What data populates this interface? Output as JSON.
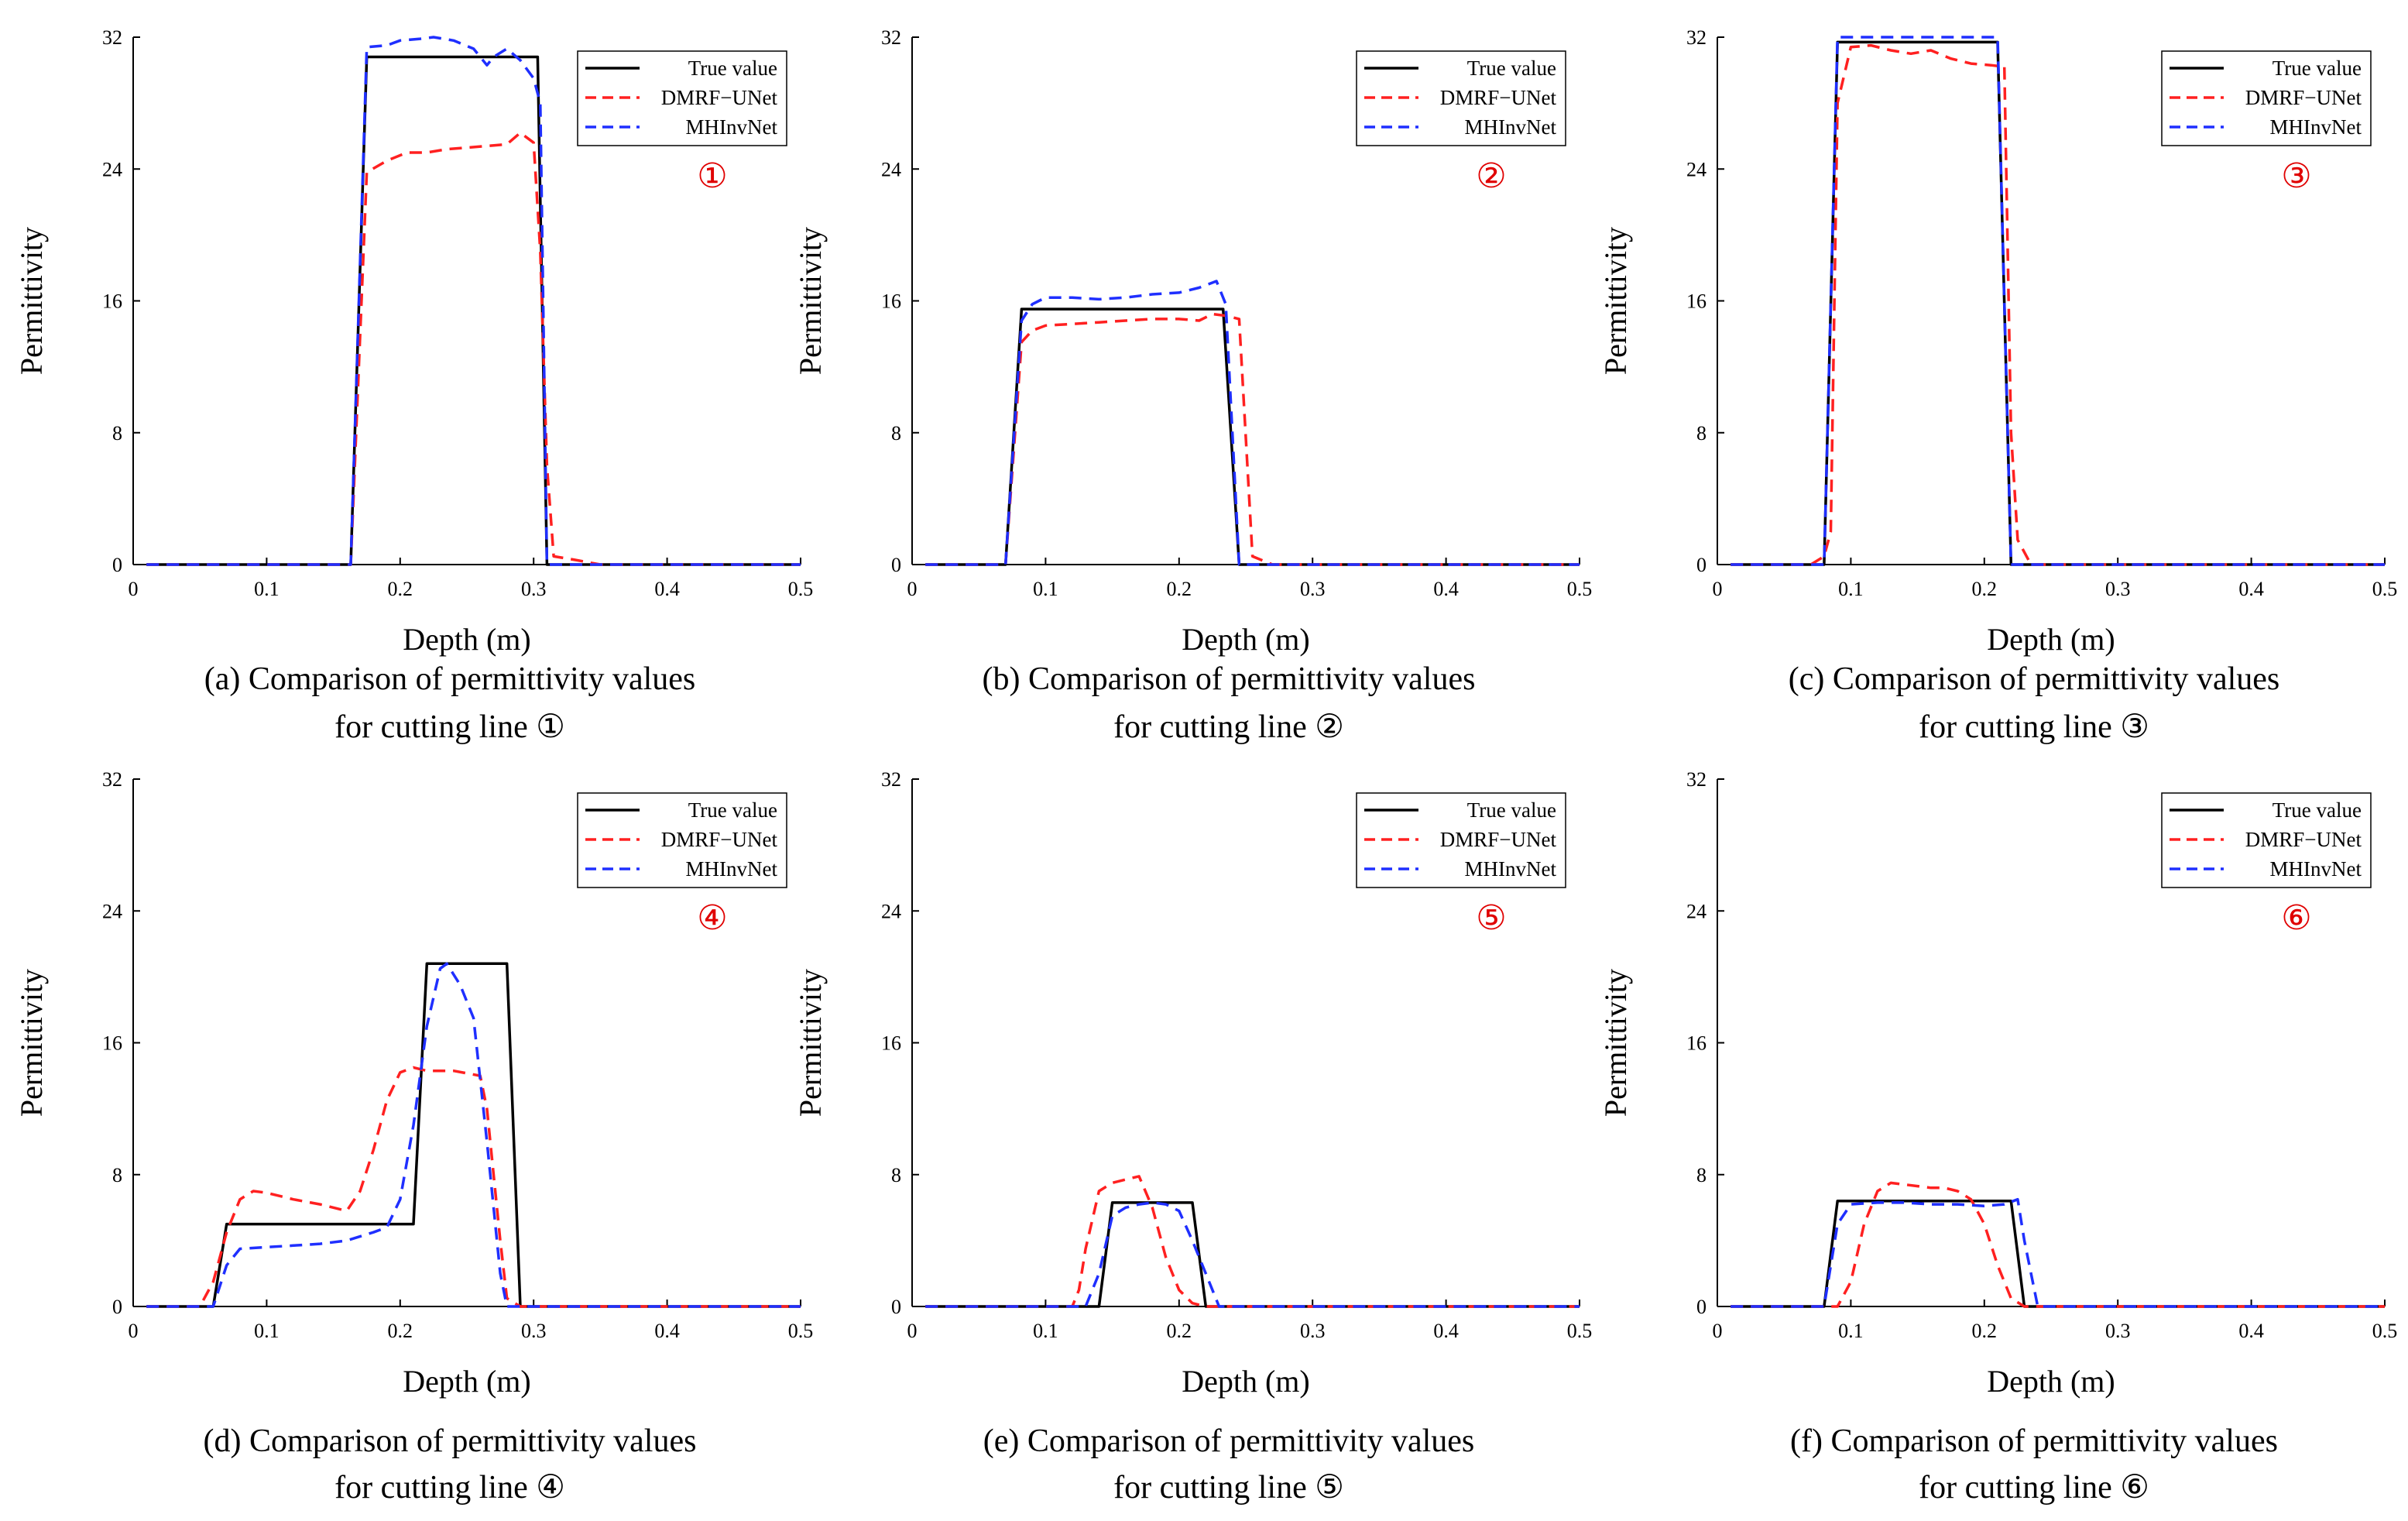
{
  "figure": {
    "panels": [
      {
        "caption_line1": "(a) Comparison of permittivity values",
        "caption_line2": "for cutting line  ①"
      },
      {
        "caption_line1": "(b) Comparison of permittivity values",
        "caption_line2": "for cutting line  ②"
      },
      {
        "caption_line1": "(c) Comparison of permittivity values",
        "caption_line2": "for cutting line  ③"
      },
      {
        "caption_line1": "(d) Comparison of permittivity values",
        "caption_line2": "for cutting line  ④"
      },
      {
        "caption_line1": "(e) Comparison of permittivity values",
        "caption_line2": "for cutting line  ⑤"
      },
      {
        "caption_line1": "(f) Comparison of permittivity values",
        "caption_line2": "for cutting line  ⑥"
      }
    ]
  },
  "colors": {
    "true_value": "#000000",
    "dmrf_unet": "#ff2020",
    "mhinvnet": "#1f2fff",
    "marker": "#e00000"
  },
  "chart_data": [
    {
      "type": "line",
      "title": "",
      "marker": "①",
      "xlabel": "Depth (m)",
      "ylabel": "Permittivity",
      "xlim": [
        0,
        0.5
      ],
      "ylim": [
        0,
        32
      ],
      "xticks": [
        0,
        0.1,
        0.2,
        0.3,
        0.4,
        0.5
      ],
      "xtick_labels": [
        "0",
        "0.1",
        "0.2",
        "0.3",
        "0.4",
        "0.5"
      ],
      "yticks": [
        0,
        8,
        16,
        24,
        32
      ],
      "ytick_labels": [
        "0",
        "8",
        "16",
        "24",
        "32"
      ],
      "legend": {
        "position": "top-right",
        "entries": [
          "True value",
          "DMRF−UNet",
          "MHInvNet"
        ]
      },
      "series": [
        {
          "name": "True value",
          "style": "solid",
          "x": [
            0.01,
            0.163,
            0.175,
            0.303,
            0.31,
            0.5
          ],
          "y": [
            0,
            0,
            30.8,
            30.8,
            0,
            0
          ]
        },
        {
          "name": "DMRF−UNet",
          "style": "dashed",
          "x": [
            0.01,
            0.163,
            0.175,
            0.19,
            0.205,
            0.22,
            0.235,
            0.25,
            0.265,
            0.28,
            0.29,
            0.3,
            0.305,
            0.31,
            0.315,
            0.33,
            0.35,
            0.5
          ],
          "y": [
            0,
            0,
            23.8,
            24.5,
            25.0,
            25.0,
            25.2,
            25.3,
            25.4,
            25.5,
            26.2,
            25.6,
            19.0,
            6.0,
            0.5,
            0.3,
            0,
            0
          ]
        },
        {
          "name": "MHInvNet",
          "style": "dashed",
          "x": [
            0.01,
            0.163,
            0.175,
            0.19,
            0.2,
            0.215,
            0.225,
            0.24,
            0.255,
            0.265,
            0.27,
            0.28,
            0.29,
            0.3,
            0.305,
            0.31,
            0.5
          ],
          "y": [
            0,
            0,
            31.4,
            31.5,
            31.8,
            31.9,
            32.0,
            31.8,
            31.3,
            30.3,
            30.8,
            31.3,
            30.6,
            29.5,
            28.0,
            0,
            0
          ]
        }
      ]
    },
    {
      "type": "line",
      "title": "",
      "marker": "②",
      "xlabel": "Depth (m)",
      "ylabel": "Permittivity",
      "xlim": [
        0,
        0.5
      ],
      "ylim": [
        0,
        32
      ],
      "xticks": [
        0,
        0.1,
        0.2,
        0.3,
        0.4,
        0.5
      ],
      "xtick_labels": [
        "0",
        "0.1",
        "0.2",
        "0.3",
        "0.4",
        "0.5"
      ],
      "yticks": [
        0,
        8,
        16,
        24,
        32
      ],
      "ytick_labels": [
        "0",
        "8",
        "16",
        "24",
        "32"
      ],
      "legend": {
        "position": "top-right",
        "entries": [
          "True value",
          "DMRF−UNet",
          "MHInvNet"
        ]
      },
      "series": [
        {
          "name": "True value",
          "style": "solid",
          "x": [
            0.01,
            0.07,
            0.082,
            0.233,
            0.245,
            0.5
          ],
          "y": [
            0,
            0,
            15.5,
            15.5,
            0,
            0
          ]
        },
        {
          "name": "DMRF−UNet",
          "style": "dashed",
          "x": [
            0.01,
            0.07,
            0.082,
            0.09,
            0.1,
            0.12,
            0.14,
            0.16,
            0.18,
            0.2,
            0.215,
            0.225,
            0.235,
            0.245,
            0.255,
            0.27,
            0.5
          ],
          "y": [
            0,
            0,
            13.5,
            14.2,
            14.5,
            14.6,
            14.7,
            14.8,
            14.9,
            14.9,
            14.8,
            15.2,
            15.1,
            14.9,
            0.5,
            0,
            0
          ]
        },
        {
          "name": "MHInvNet",
          "style": "dashed",
          "x": [
            0.01,
            0.07,
            0.082,
            0.09,
            0.1,
            0.12,
            0.14,
            0.16,
            0.18,
            0.2,
            0.215,
            0.228,
            0.235,
            0.245,
            0.5
          ],
          "y": [
            0,
            0,
            14.8,
            15.8,
            16.2,
            16.2,
            16.1,
            16.2,
            16.4,
            16.5,
            16.8,
            17.2,
            15.8,
            0,
            0
          ]
        }
      ]
    },
    {
      "type": "line",
      "title": "",
      "marker": "③",
      "xlabel": "Depth (m)",
      "ylabel": "Permittivity",
      "xlim": [
        0,
        0.5
      ],
      "ylim": [
        0,
        32
      ],
      "xticks": [
        0,
        0.1,
        0.2,
        0.3,
        0.4,
        0.5
      ],
      "xtick_labels": [
        "0",
        "0.1",
        "0.2",
        "0.3",
        "0.4",
        "0.5"
      ],
      "yticks": [
        0,
        8,
        16,
        24,
        32
      ],
      "ytick_labels": [
        "0",
        "8",
        "16",
        "24",
        "32"
      ],
      "legend": {
        "position": "top-right",
        "entries": [
          "True value",
          "DMRF−UNet",
          "MHInvNet"
        ]
      },
      "series": [
        {
          "name": "True value",
          "style": "solid",
          "x": [
            0.01,
            0.08,
            0.09,
            0.21,
            0.22,
            0.5
          ],
          "y": [
            0,
            0,
            31.7,
            31.7,
            0,
            0
          ]
        },
        {
          "name": "DMRF−UNet",
          "style": "dashed",
          "x": [
            0.01,
            0.07,
            0.08,
            0.085,
            0.09,
            0.1,
            0.115,
            0.13,
            0.145,
            0.16,
            0.175,
            0.19,
            0.205,
            0.215,
            0.22,
            0.225,
            0.235,
            0.5
          ],
          "y": [
            0,
            0,
            0.5,
            2.0,
            28.0,
            31.4,
            31.5,
            31.2,
            31.0,
            31.2,
            30.7,
            30.4,
            30.3,
            30.2,
            8.0,
            1.5,
            0,
            0
          ]
        },
        {
          "name": "MHInvNet",
          "style": "dashed",
          "x": [
            0.01,
            0.08,
            0.09,
            0.21,
            0.22,
            0.5
          ],
          "y": [
            0,
            0,
            32.0,
            32.0,
            0,
            0
          ]
        }
      ]
    },
    {
      "type": "line",
      "title": "",
      "marker": "④",
      "xlabel": "Depth (m)",
      "ylabel": "Permittivity",
      "xlim": [
        0,
        0.5
      ],
      "ylim": [
        0,
        32
      ],
      "xticks": [
        0,
        0.1,
        0.2,
        0.3,
        0.4,
        0.5
      ],
      "xtick_labels": [
        "0",
        "0.1",
        "0.2",
        "0.3",
        "0.4",
        "0.5"
      ],
      "yticks": [
        0,
        8,
        16,
        24,
        32
      ],
      "ytick_labels": [
        "0",
        "8",
        "16",
        "24",
        "32"
      ],
      "legend": {
        "position": "top-right",
        "entries": [
          "True value",
          "DMRF−UNet",
          "MHInvNet"
        ]
      },
      "series": [
        {
          "name": "True value",
          "style": "solid",
          "x": [
            0.01,
            0.06,
            0.07,
            0.21,
            0.22,
            0.28,
            0.29,
            0.5
          ],
          "y": [
            0,
            0,
            5.0,
            5.0,
            20.8,
            20.8,
            0,
            0
          ]
        },
        {
          "name": "DMRF−UNet",
          "style": "dashed",
          "x": [
            0.01,
            0.05,
            0.06,
            0.07,
            0.08,
            0.09,
            0.1,
            0.12,
            0.14,
            0.16,
            0.17,
            0.18,
            0.19,
            0.2,
            0.21,
            0.22,
            0.24,
            0.26,
            0.265,
            0.275,
            0.28,
            0.29,
            0.5
          ],
          "y": [
            0,
            0,
            1.5,
            4.5,
            6.5,
            7.0,
            6.9,
            6.5,
            6.2,
            5.8,
            7.0,
            9.5,
            12.5,
            14.2,
            14.5,
            14.3,
            14.3,
            14.0,
            12.0,
            4.0,
            0.5,
            0,
            0
          ]
        },
        {
          "name": "MHInvNet",
          "style": "dashed",
          "x": [
            0.01,
            0.06,
            0.07,
            0.08,
            0.1,
            0.12,
            0.14,
            0.16,
            0.18,
            0.19,
            0.2,
            0.21,
            0.22,
            0.23,
            0.235,
            0.245,
            0.255,
            0.265,
            0.275,
            0.28,
            0.29,
            0.5
          ],
          "y": [
            0,
            0,
            2.5,
            3.5,
            3.6,
            3.7,
            3.8,
            4.0,
            4.5,
            4.8,
            6.5,
            11.0,
            17.0,
            20.5,
            20.8,
            19.5,
            17.5,
            10.0,
            2.0,
            0,
            0,
            0
          ]
        }
      ]
    },
    {
      "type": "line",
      "title": "",
      "marker": "⑤",
      "xlabel": "Depth (m)",
      "ylabel": "Permittivity",
      "xlim": [
        0,
        0.5
      ],
      "ylim": [
        0,
        32
      ],
      "xticks": [
        0,
        0.1,
        0.2,
        0.3,
        0.4,
        0.5
      ],
      "xtick_labels": [
        "0",
        "0.1",
        "0.2",
        "0.3",
        "0.4",
        "0.5"
      ],
      "yticks": [
        0,
        8,
        16,
        24,
        32
      ],
      "ytick_labels": [
        "0",
        "8",
        "16",
        "24",
        "32"
      ],
      "legend": {
        "position": "top-right",
        "entries": [
          "True value",
          "DMRF−UNet",
          "MHInvNet"
        ]
      },
      "series": [
        {
          "name": "True value",
          "style": "solid",
          "x": [
            0.01,
            0.14,
            0.15,
            0.21,
            0.22,
            0.5
          ],
          "y": [
            0,
            0,
            6.3,
            6.3,
            0,
            0
          ]
        },
        {
          "name": "DMRF−UNet",
          "style": "dashed",
          "x": [
            0.01,
            0.12,
            0.125,
            0.13,
            0.14,
            0.15,
            0.16,
            0.17,
            0.18,
            0.19,
            0.2,
            0.21,
            0.22,
            0.5
          ],
          "y": [
            0,
            0,
            1.0,
            3.5,
            7.0,
            7.5,
            7.7,
            7.9,
            6.0,
            3.0,
            1.0,
            0.2,
            0,
            0
          ]
        },
        {
          "name": "MHInvNet",
          "style": "dashed",
          "x": [
            0.01,
            0.13,
            0.14,
            0.15,
            0.16,
            0.17,
            0.18,
            0.19,
            0.2,
            0.21,
            0.22,
            0.23,
            0.5
          ],
          "y": [
            0,
            0,
            2.0,
            5.5,
            6.0,
            6.2,
            6.3,
            6.2,
            5.8,
            4.0,
            2.0,
            0,
            0
          ]
        }
      ]
    },
    {
      "type": "line",
      "title": "",
      "marker": "⑥",
      "xlabel": "Depth (m)",
      "ylabel": "Permittivity",
      "xlim": [
        0,
        0.5
      ],
      "ylim": [
        0,
        32
      ],
      "xticks": [
        0,
        0.1,
        0.2,
        0.3,
        0.4,
        0.5
      ],
      "xtick_labels": [
        "0",
        "0.1",
        "0.2",
        "0.3",
        "0.4",
        "0.5"
      ],
      "yticks": [
        0,
        8,
        16,
        24,
        32
      ],
      "ytick_labels": [
        "0",
        "8",
        "16",
        "24",
        "32"
      ],
      "legend": {
        "position": "top-right",
        "entries": [
          "True value",
          "DMRF−UNet",
          "MHInvNet"
        ]
      },
      "series": [
        {
          "name": "True value",
          "style": "solid",
          "x": [
            0.01,
            0.08,
            0.09,
            0.22,
            0.23,
            0.5
          ],
          "y": [
            0,
            0,
            6.4,
            6.4,
            0,
            0
          ]
        },
        {
          "name": "DMRF−UNet",
          "style": "dashed",
          "x": [
            0.01,
            0.09,
            0.1,
            0.11,
            0.12,
            0.13,
            0.14,
            0.15,
            0.16,
            0.17,
            0.18,
            0.19,
            0.2,
            0.21,
            0.22,
            0.23,
            0.5
          ],
          "y": [
            0,
            0,
            1.5,
            5.0,
            7.0,
            7.5,
            7.4,
            7.3,
            7.2,
            7.2,
            7.0,
            6.5,
            5.0,
            2.5,
            0.5,
            0,
            0
          ]
        },
        {
          "name": "MHInvNet",
          "style": "dashed",
          "x": [
            0.01,
            0.08,
            0.09,
            0.1,
            0.12,
            0.14,
            0.16,
            0.18,
            0.2,
            0.215,
            0.225,
            0.23,
            0.24,
            0.5
          ],
          "y": [
            0,
            0,
            5.0,
            6.2,
            6.3,
            6.3,
            6.2,
            6.2,
            6.1,
            6.2,
            6.5,
            4.0,
            0,
            0
          ]
        }
      ]
    }
  ]
}
